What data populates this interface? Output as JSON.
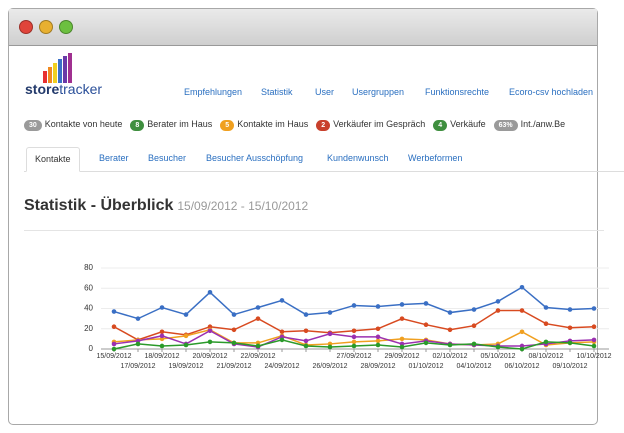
{
  "logo": {
    "part1": "store",
    "part2": "tracker"
  },
  "nav": [
    "Empfehlungen",
    "Statistik",
    "User",
    "Usergruppen",
    "Funktionsrechte",
    "Ecoro-csv hochladen"
  ],
  "badges": [
    {
      "count": "30",
      "label": "Kontakte von heute",
      "color": "#9a9a9a"
    },
    {
      "count": "8",
      "label": "Berater im Haus",
      "color": "#3f8f3f"
    },
    {
      "count": "5",
      "label": "Kontakte im Haus",
      "color": "#f0a020"
    },
    {
      "count": "2",
      "label": "Verkäufer im Gespräch",
      "color": "#c8402c"
    },
    {
      "count": "4",
      "label": "Verkäufe",
      "color": "#3f8f3f"
    },
    {
      "count": "63%",
      "label": "Int./anw.Be",
      "color": "#9a9a9a"
    }
  ],
  "tabs": [
    "Kontakte",
    "Berater",
    "Besucher",
    "Besucher Ausschöpfung",
    "Kundenwunsch",
    "Werbeformen"
  ],
  "heading": {
    "title": "Statistik - Überblick",
    "range": "15/09/2012 - 15/10/2012"
  },
  "chart_data": {
    "type": "line",
    "categories": [
      "15/09/2012",
      "17/09/2012",
      "18/09/2012",
      "19/09/2012",
      "20/09/2012",
      "21/09/2012",
      "22/09/2012",
      "24/09/2012",
      null,
      "26/09/2012",
      "27/09/2012",
      "28/09/2012",
      "29/09/2012",
      "01/10/2012",
      "02/10/2012",
      "04/10/2012",
      "05/10/2012",
      "06/10/2012",
      "08/10/2012",
      "09/10/2012",
      "10/10/2012"
    ],
    "series": [
      {
        "color": "#3a6fc4",
        "values": [
          37,
          30,
          41,
          34,
          56,
          34,
          41,
          48,
          34,
          36,
          43,
          42,
          44,
          45,
          36,
          39,
          47,
          61,
          41,
          39,
          40
        ]
      },
      {
        "color": "#d84a20",
        "values": [
          22,
          9,
          17,
          14,
          22,
          19,
          30,
          17,
          18,
          16,
          18,
          20,
          30,
          24,
          19,
          23,
          38,
          38,
          25,
          21,
          22
        ]
      },
      {
        "color": "#f0a020",
        "values": [
          7,
          9,
          10,
          13,
          19,
          6,
          6,
          13,
          4,
          5,
          7,
          8,
          10,
          9,
          5,
          4,
          5,
          17,
          4,
          6,
          7
        ]
      },
      {
        "color": "#9b30b0",
        "values": [
          5,
          8,
          13,
          5,
          18,
          5,
          2,
          12,
          8,
          15,
          12,
          12,
          5,
          8,
          5,
          4,
          3,
          3,
          5,
          8,
          9
        ]
      },
      {
        "color": "#2a9a2a",
        "values": [
          0,
          5,
          3,
          4,
          7,
          6,
          3,
          9,
          3,
          2,
          3,
          4,
          2,
          6,
          4,
          5,
          2,
          0,
          7,
          6,
          3
        ]
      }
    ],
    "ylim": [
      0,
      80
    ],
    "yticks": [
      0,
      20,
      40,
      60,
      80
    ],
    "grid": true
  }
}
